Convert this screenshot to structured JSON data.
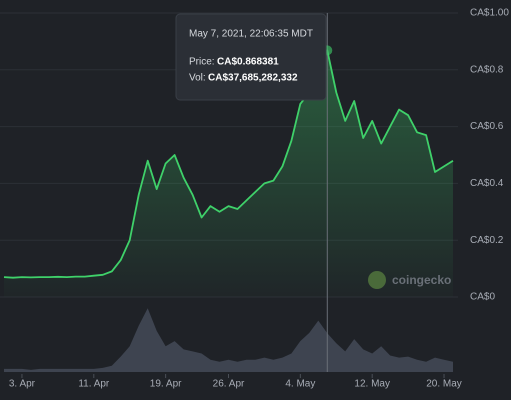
{
  "chart_data": {
    "type": "line",
    "x": [
      "2021-04-01",
      "2021-04-02",
      "2021-04-03",
      "2021-04-04",
      "2021-04-05",
      "2021-04-06",
      "2021-04-07",
      "2021-04-08",
      "2021-04-09",
      "2021-04-10",
      "2021-04-11",
      "2021-04-12",
      "2021-04-13",
      "2021-04-14",
      "2021-04-15",
      "2021-04-16",
      "2021-04-17",
      "2021-04-18",
      "2021-04-19",
      "2021-04-20",
      "2021-04-21",
      "2021-04-22",
      "2021-04-23",
      "2021-04-24",
      "2021-04-25",
      "2021-04-26",
      "2021-04-27",
      "2021-04-28",
      "2021-04-29",
      "2021-04-30",
      "2021-05-01",
      "2021-05-02",
      "2021-05-03",
      "2021-05-04",
      "2021-05-05",
      "2021-05-06",
      "2021-05-07",
      "2021-05-08",
      "2021-05-09",
      "2021-05-10",
      "2021-05-11",
      "2021-05-12",
      "2021-05-13",
      "2021-05-14",
      "2021-05-15",
      "2021-05-16",
      "2021-05-17",
      "2021-05-18",
      "2021-05-19",
      "2021-05-20",
      "2021-05-21"
    ],
    "xlim": [
      "2021-04-01",
      "2021-05-21"
    ],
    "xticks": [
      {
        "value": "2021-04-03",
        "label": "3. Apr"
      },
      {
        "value": "2021-04-11",
        "label": "11. Apr"
      },
      {
        "value": "2021-04-19",
        "label": "19. Apr"
      },
      {
        "value": "2021-04-26",
        "label": "26. Apr"
      },
      {
        "value": "2021-05-04",
        "label": "4. May"
      },
      {
        "value": "2021-05-12",
        "label": "12. May"
      },
      {
        "value": "2021-05-20",
        "label": "20. May"
      }
    ],
    "ylim": [
      0,
      1
    ],
    "yticks": [
      {
        "value": 0,
        "label": "CA$0"
      },
      {
        "value": 0.2,
        "label": "CA$0.2"
      },
      {
        "value": 0.4,
        "label": "CA$0.4"
      },
      {
        "value": 0.6,
        "label": "CA$0.6"
      },
      {
        "value": 0.8,
        "label": "CA$0.8"
      },
      {
        "value": 1,
        "label": "CA$1.00"
      }
    ],
    "y2lim": [
      0,
      70000000000
    ],
    "grid": true,
    "series": [
      {
        "color": "#3fd16a",
        "values": [
          0.07,
          0.068,
          0.07,
          0.069,
          0.07,
          0.07,
          0.071,
          0.07,
          0.072,
          0.072,
          0.075,
          0.078,
          0.09,
          0.13,
          0.2,
          0.36,
          0.48,
          0.38,
          0.47,
          0.5,
          0.42,
          0.36,
          0.28,
          0.32,
          0.3,
          0.32,
          0.31,
          0.34,
          0.37,
          0.4,
          0.41,
          0.46,
          0.55,
          0.68,
          0.72,
          0.8,
          0.868381,
          0.72,
          0.62,
          0.69,
          0.56,
          0.62,
          0.54,
          0.6,
          0.66,
          0.64,
          0.58,
          0.57,
          0.44,
          0.46,
          0.48
        ]
      },
      {
        "color": "#4b5262",
        "axis": "y2",
        "values": [
          3000000000,
          3000000000,
          3000000000,
          2000000000,
          3000000000,
          3000000000,
          3000000000,
          3000000000,
          3000000000,
          3000000000,
          3000000000,
          4000000000,
          6000000000,
          15000000000,
          25000000000,
          45000000000,
          62000000000,
          40000000000,
          25000000000,
          30000000000,
          22000000000,
          20000000000,
          18000000000,
          12000000000,
          10000000000,
          12000000000,
          10000000000,
          12000000000,
          12000000000,
          14000000000,
          12000000000,
          14000000000,
          18000000000,
          30000000000,
          38000000000,
          50000000000,
          37685282332,
          28000000000,
          20000000000,
          32000000000,
          22000000000,
          18000000000,
          25000000000,
          16000000000,
          14000000000,
          15000000000,
          12000000000,
          10000000000,
          14000000000,
          12000000000,
          10000000000
        ]
      }
    ],
    "tooltip": {
      "date": "May 7, 2021, 22:06:35 MDT",
      "price_label": "Price:",
      "price": "CA$0.868381",
      "volume_label": "Vol:",
      "volume": "CA$37,685,282,332"
    },
    "watermark": "coingecko"
  }
}
